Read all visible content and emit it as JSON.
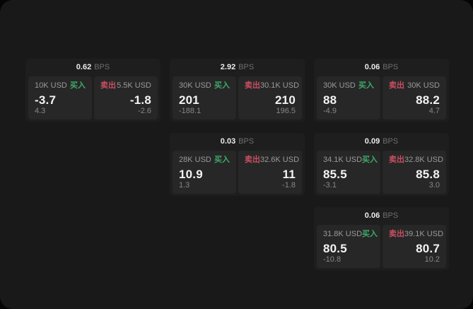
{
  "labels": {
    "buy": "买入",
    "sell": "卖出",
    "bps_unit": "BPS"
  },
  "colors": {
    "buy": "#3fa96a",
    "sell": "#c94f63",
    "window_bg": "#191919",
    "card_bg": "#1e1e1e",
    "panel_bg": "#272727"
  },
  "cards": [
    {
      "bps": "0.62",
      "row": 1,
      "col": 1,
      "buy": {
        "amount": "10K USD",
        "main": "-3.7",
        "sub": "4.3"
      },
      "sell": {
        "amount": "5.5K USD",
        "main": "-1.8",
        "sub": "-2.6"
      }
    },
    {
      "bps": "2.92",
      "row": 1,
      "col": 2,
      "buy": {
        "amount": "30K USD",
        "main": "201",
        "sub": "-188.1"
      },
      "sell": {
        "amount": "30.1K USD",
        "main": "210",
        "sub": "196.5"
      }
    },
    {
      "bps": "0.06",
      "row": 1,
      "col": 3,
      "buy": {
        "amount": "30K USD",
        "main": "88",
        "sub": "-4.9"
      },
      "sell": {
        "amount": "30K USD",
        "main": "88.2",
        "sub": "4.7"
      }
    },
    {
      "bps": "0.03",
      "row": 2,
      "col": 2,
      "buy": {
        "amount": "28K USD",
        "main": "10.9",
        "sub": "1.3"
      },
      "sell": {
        "amount": "32.6K USD",
        "main": "11",
        "sub": "-1.8"
      }
    },
    {
      "bps": "0.09",
      "row": 2,
      "col": 3,
      "buy": {
        "amount": "34.1K USD",
        "main": "85.5",
        "sub": "-3.1"
      },
      "sell": {
        "amount": "32.8K USD",
        "main": "85.8",
        "sub": "3.0"
      }
    },
    {
      "bps": "0.06",
      "row": 3,
      "col": 3,
      "buy": {
        "amount": "31.8K USD",
        "main": "80.5",
        "sub": "-10.8"
      },
      "sell": {
        "amount": "39.1K USD",
        "main": "80.7",
        "sub": "10.2"
      }
    }
  ]
}
